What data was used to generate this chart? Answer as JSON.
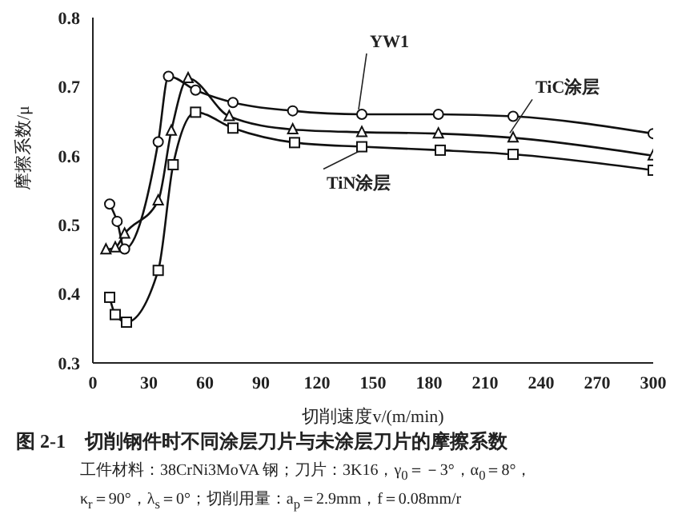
{
  "chart_data": {
    "type": "line",
    "xlabel": "切削速度v/(m/min)",
    "ylabel": "摩擦系数/μ",
    "title": "图 2-1　切削钢件时不同涂层刀片与未涂层刀片的摩擦系数",
    "annotations": [
      "工件材料：38CrNi3MoVA 钢；刀片：3K16，γ$_{0}$＝－3°，α$_{0}$＝8°，",
      "κ$_{r}$＝90°，λ$_{s}$＝0°；切削用量：a$_{p}$＝2.9mm，f＝0.08mm/r"
    ],
    "xlim": [
      0,
      300
    ],
    "xticks": [
      0,
      30,
      60,
      90,
      120,
      150,
      180,
      210,
      240,
      270,
      300
    ],
    "ylim": [
      0.3,
      0.8
    ],
    "yticks": [
      0.3,
      0.4,
      0.5,
      0.6,
      0.7,
      0.8
    ],
    "line_style": "solid",
    "series": [
      {
        "name": "YW1",
        "color": "#111111",
        "marker": "circle",
        "x": [
          9,
          13,
          17,
          35,
          40.5,
          55,
          75,
          107,
          144,
          185,
          225,
          300
        ],
        "values": [
          0.53,
          0.505,
          0.465,
          0.62,
          0.715,
          0.695,
          0.677,
          0.665,
          0.66,
          0.66,
          0.657,
          0.632
        ]
      },
      {
        "name": "TiC涂层",
        "color": "#111111",
        "marker": "triangle",
        "x": [
          7,
          12,
          17,
          35,
          42,
          51,
          73,
          107,
          144,
          185,
          225,
          300
        ],
        "values": [
          0.464,
          0.467,
          0.487,
          0.535,
          0.636,
          0.712,
          0.657,
          0.638,
          0.634,
          0.632,
          0.626,
          0.6
        ]
      },
      {
        "name": "TiN涂层",
        "color": "#111111",
        "marker": "square",
        "x": [
          9,
          12,
          18,
          35,
          43,
          55,
          75,
          108,
          144,
          186,
          225,
          300
        ],
        "values": [
          0.395,
          0.37,
          0.359,
          0.434,
          0.587,
          0.663,
          0.64,
          0.619,
          0.613,
          0.608,
          0.602,
          0.579
        ]
      }
    ]
  }
}
